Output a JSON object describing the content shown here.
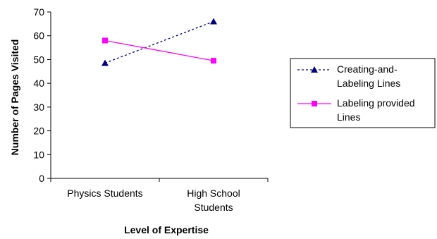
{
  "chart_data": {
    "type": "line",
    "title": "",
    "xlabel": "Level of Expertise",
    "ylabel": "Number of Pages Visited",
    "categories": [
      [
        "Physics Students"
      ],
      [
        "High School",
        "Students"
      ]
    ],
    "ylim": [
      0,
      70
    ],
    "yticks": [
      0,
      10,
      20,
      30,
      40,
      50,
      60,
      70
    ],
    "grid": false,
    "legend_position": "right",
    "series": [
      {
        "name_lines": [
          "Creating-and-",
          "Labeling Lines"
        ],
        "values": [
          48.5,
          66
        ],
        "color": "#000080",
        "line_style": "dotted",
        "marker": "triangle"
      },
      {
        "name_lines": [
          "Labeling provided",
          "Lines"
        ],
        "values": [
          58,
          49.5
        ],
        "color": "#FF00FF",
        "line_style": "solid",
        "marker": "square"
      }
    ]
  }
}
